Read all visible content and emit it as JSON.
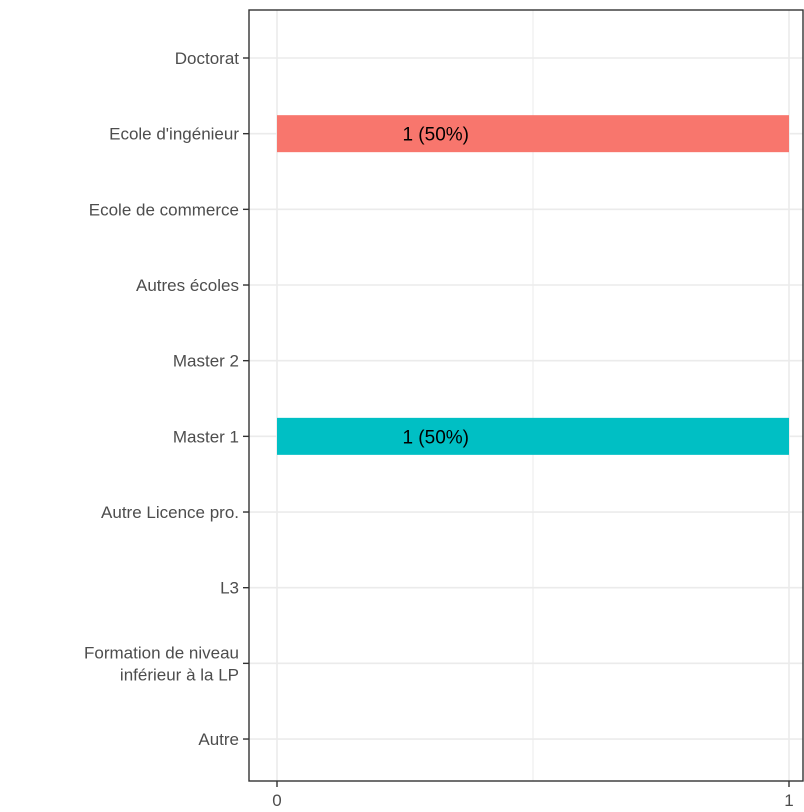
{
  "chart_data": {
    "type": "bar",
    "orientation": "horizontal",
    "categories": [
      "Doctorat",
      "Ecole d'ingénieur",
      "Ecole de commerce",
      "Autres écoles",
      "Master 2",
      "Master 1",
      "Autre Licence pro.",
      "L3",
      "Formation de niveau\ninférieur à la LP",
      "Autre"
    ],
    "values": [
      0,
      1,
      0,
      0,
      0,
      1,
      0,
      0,
      0,
      0
    ],
    "data_labels": [
      "",
      "1 (50%)",
      "",
      "",
      "",
      "1 (50%)",
      "",
      "",
      "",
      ""
    ],
    "bar_colors": [
      "",
      "#F8766D",
      "",
      "",
      "",
      "#00BFC4",
      "",
      "",
      "",
      ""
    ],
    "x_ticks": [
      0,
      1
    ],
    "x_tick_labels": [
      "0",
      "1"
    ],
    "xlim": [
      0,
      1
    ],
    "grid": true,
    "legend": "none"
  },
  "colors": {
    "grid": "#ebebeb",
    "axis": "#333333",
    "tick_text": "#4d4d4d"
  }
}
